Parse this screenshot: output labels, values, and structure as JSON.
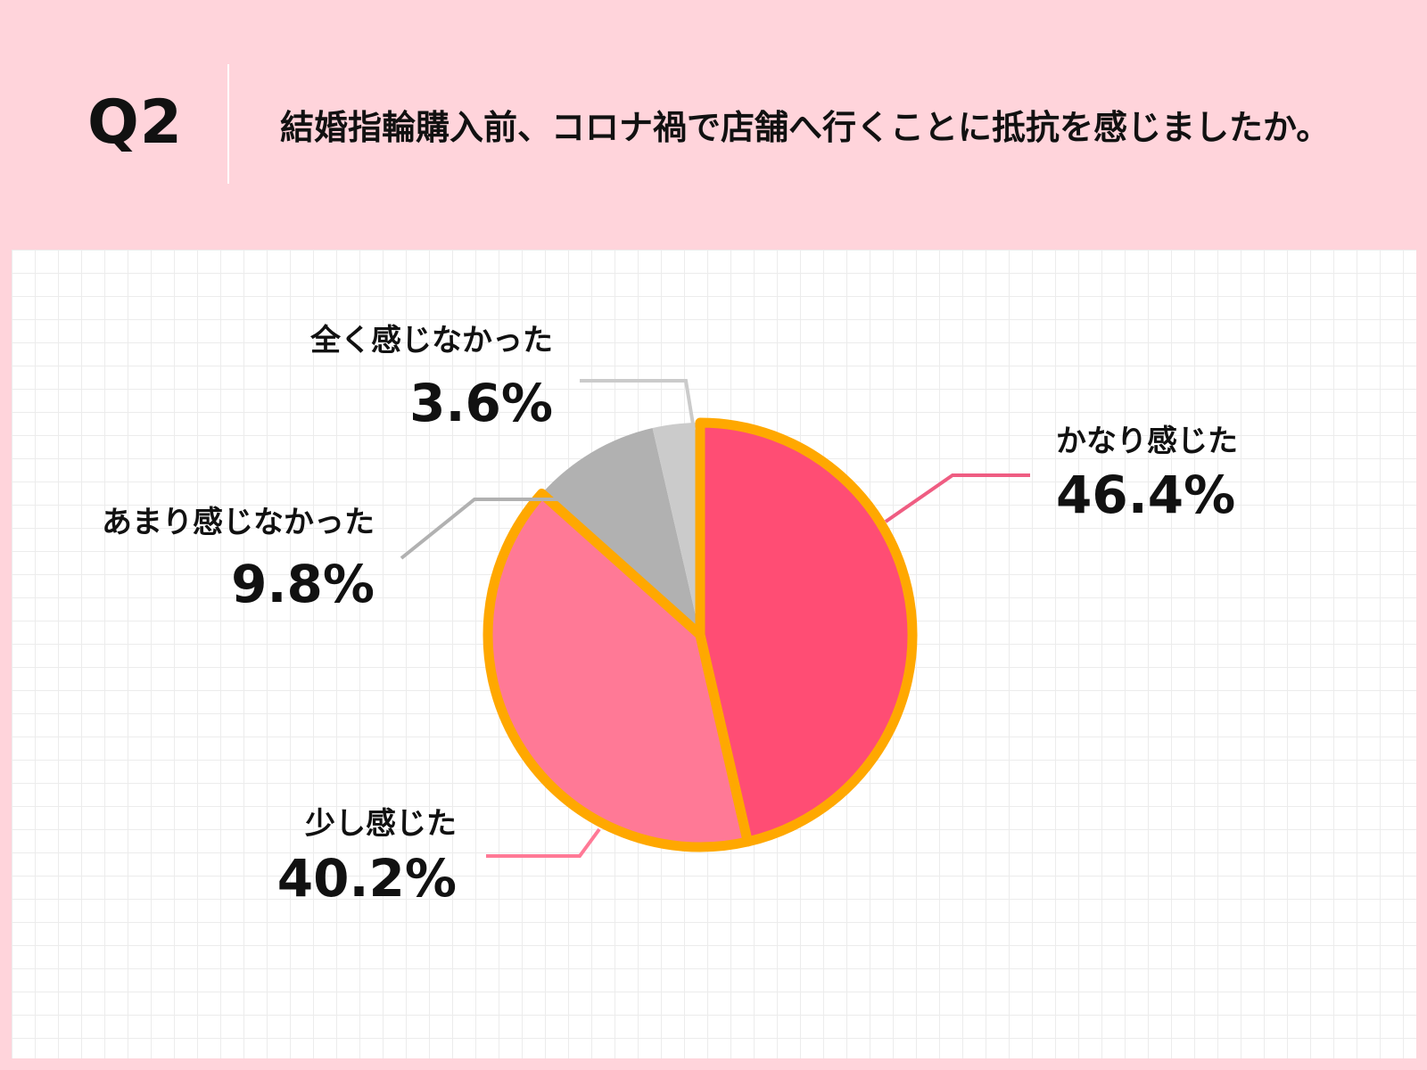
{
  "question": {
    "label": "Q2",
    "text": "結婚指輪購入前、コロナ禍で店舗へ行くことに抵抗を感じましたか。"
  },
  "chart_data": {
    "type": "pie",
    "title": "",
    "slices": [
      {
        "label": "かなり感じた",
        "value": 46.4,
        "display": "46.4%",
        "color": "#ff4d74"
      },
      {
        "label": "少し感じた",
        "value": 40.2,
        "display": "40.2%",
        "color": "#ff7996"
      },
      {
        "label": "あまり感じなかった",
        "value": 9.8,
        "display": "9.8%",
        "color": "#b1b1b1"
      },
      {
        "label": "全く感じなかった",
        "value": 3.6,
        "display": "3.6%",
        "color": "#cbcbcb"
      }
    ],
    "start_angle": "12 o'clock",
    "direction": "clockwise",
    "highlight_outline_color": "#ffa800",
    "legend": "none"
  }
}
